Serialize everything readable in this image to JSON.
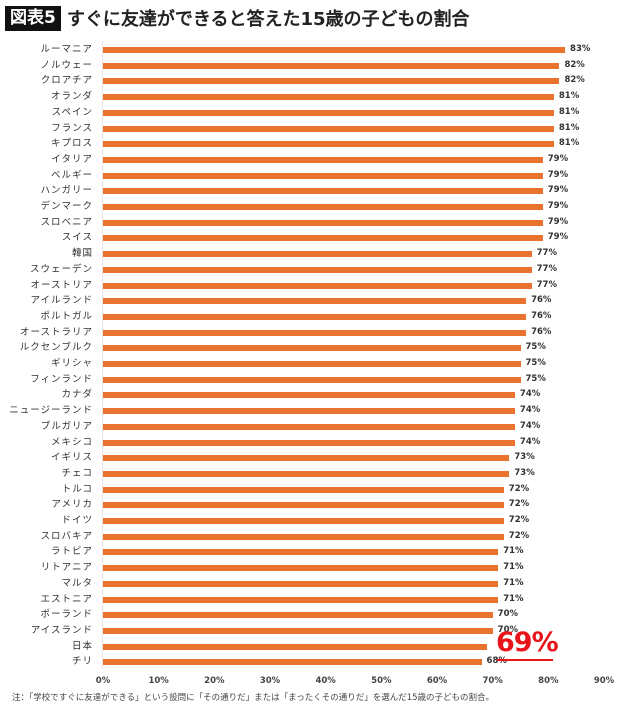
{
  "header": {
    "badge": "図表5",
    "title": "すぐに友達ができると答えた15歳の子どもの割合"
  },
  "highlight": {
    "label": "69%",
    "country": "日本",
    "color": "#e8141a"
  },
  "note": "注：「学校ですぐに友達ができる」という設問に「その通りだ」または「まったくその通りだ」を選んだ15歳の子どもの割合。",
  "colors": {
    "bar": "#E8722E",
    "highlight": "#e8141a",
    "badge_bg": "#111111"
  },
  "chart_data": {
    "type": "bar",
    "orientation": "horizontal",
    "title": "すぐに友達ができると答えた15歳の子どもの割合",
    "xlabel": "",
    "ylabel": "",
    "xlim": [
      0,
      90
    ],
    "x_ticks": [
      "0%",
      "10%",
      "20%",
      "30%",
      "40%",
      "50%",
      "60%",
      "70%",
      "80%",
      "90%"
    ],
    "grid": false,
    "legend": null,
    "categories": [
      "ルーマニア",
      "ノルウェー",
      "クロアチア",
      "オランダ",
      "スペイン",
      "フランス",
      "キプロス",
      "イタリア",
      "ベルギー",
      "ハンガリー",
      "デンマーク",
      "スロベニア",
      "スイス",
      "韓国",
      "スウェーデン",
      "オーストリア",
      "アイルランド",
      "ポルトガル",
      "オーストラリア",
      "ルクセンブルク",
      "ギリシャ",
      "フィンランド",
      "カナダ",
      "ニュージーランド",
      "ブルガリア",
      "メキシコ",
      "イギリス",
      "チェコ",
      "トルコ",
      "アメリカ",
      "ドイツ",
      "スロバキア",
      "ラトビア",
      "リトアニア",
      "マルタ",
      "エストニア",
      "ポーランド",
      "アイスランド",
      "日本",
      "チリ"
    ],
    "values": [
      83,
      82,
      82,
      81,
      81,
      81,
      81,
      79,
      79,
      79,
      79,
      79,
      79,
      77,
      77,
      77,
      76,
      76,
      76,
      75,
      75,
      75,
      74,
      74,
      74,
      74,
      73,
      73,
      72,
      72,
      72,
      72,
      71,
      71,
      71,
      71,
      70,
      70,
      69,
      68
    ],
    "value_labels": [
      "83%",
      "82%",
      "82%",
      "81%",
      "81%",
      "81%",
      "81%",
      "79%",
      "79%",
      "79%",
      "79%",
      "79%",
      "79%",
      "77%",
      "77%",
      "77%",
      "76%",
      "76%",
      "76%",
      "75%",
      "75%",
      "75%",
      "74%",
      "74%",
      "74%",
      "74%",
      "73%",
      "73%",
      "72%",
      "72%",
      "72%",
      "72%",
      "71%",
      "71%",
      "71%",
      "71%",
      "70%",
      "70%",
      "",
      "68%"
    ],
    "annotations": [
      {
        "category": "日本",
        "text": "69%",
        "style": "large red underlined"
      }
    ],
    "note": "注：「学校ですぐに友達ができる」という設問に「その通りだ」または「まったくその通りだ」を選んだ15歳の子どもの割合。"
  }
}
